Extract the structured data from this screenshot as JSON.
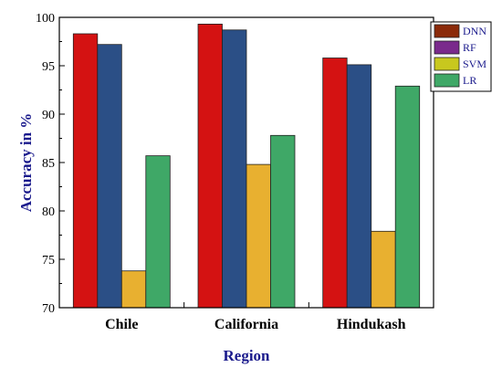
{
  "chart_data": {
    "type": "bar",
    "title": "",
    "xlabel": "Region",
    "ylabel": "Accuracy in %",
    "categories": [
      "Chile",
      "California",
      "Hindukash"
    ],
    "ylim": [
      70,
      100
    ],
    "yticks": [
      70,
      75,
      80,
      85,
      90,
      95,
      100
    ],
    "grid": false,
    "legend_position": "top-right",
    "series": [
      {
        "name": "DNN",
        "color": "#d41212",
        "legend_color": "#8b2a0a",
        "values": [
          98.3,
          99.3,
          95.8
        ]
      },
      {
        "name": "RF",
        "color": "#2b4f86",
        "legend_color": "#7a2a8c",
        "values": [
          97.2,
          98.7,
          95.1
        ]
      },
      {
        "name": "SVM",
        "color": "#e8b030",
        "legend_color": "#c8c81e",
        "values": [
          73.8,
          84.8,
          77.9
        ]
      },
      {
        "name": "LR",
        "color": "#3fa867",
        "legend_color": "#3fa867",
        "values": [
          85.7,
          87.8,
          92.9
        ]
      }
    ]
  }
}
